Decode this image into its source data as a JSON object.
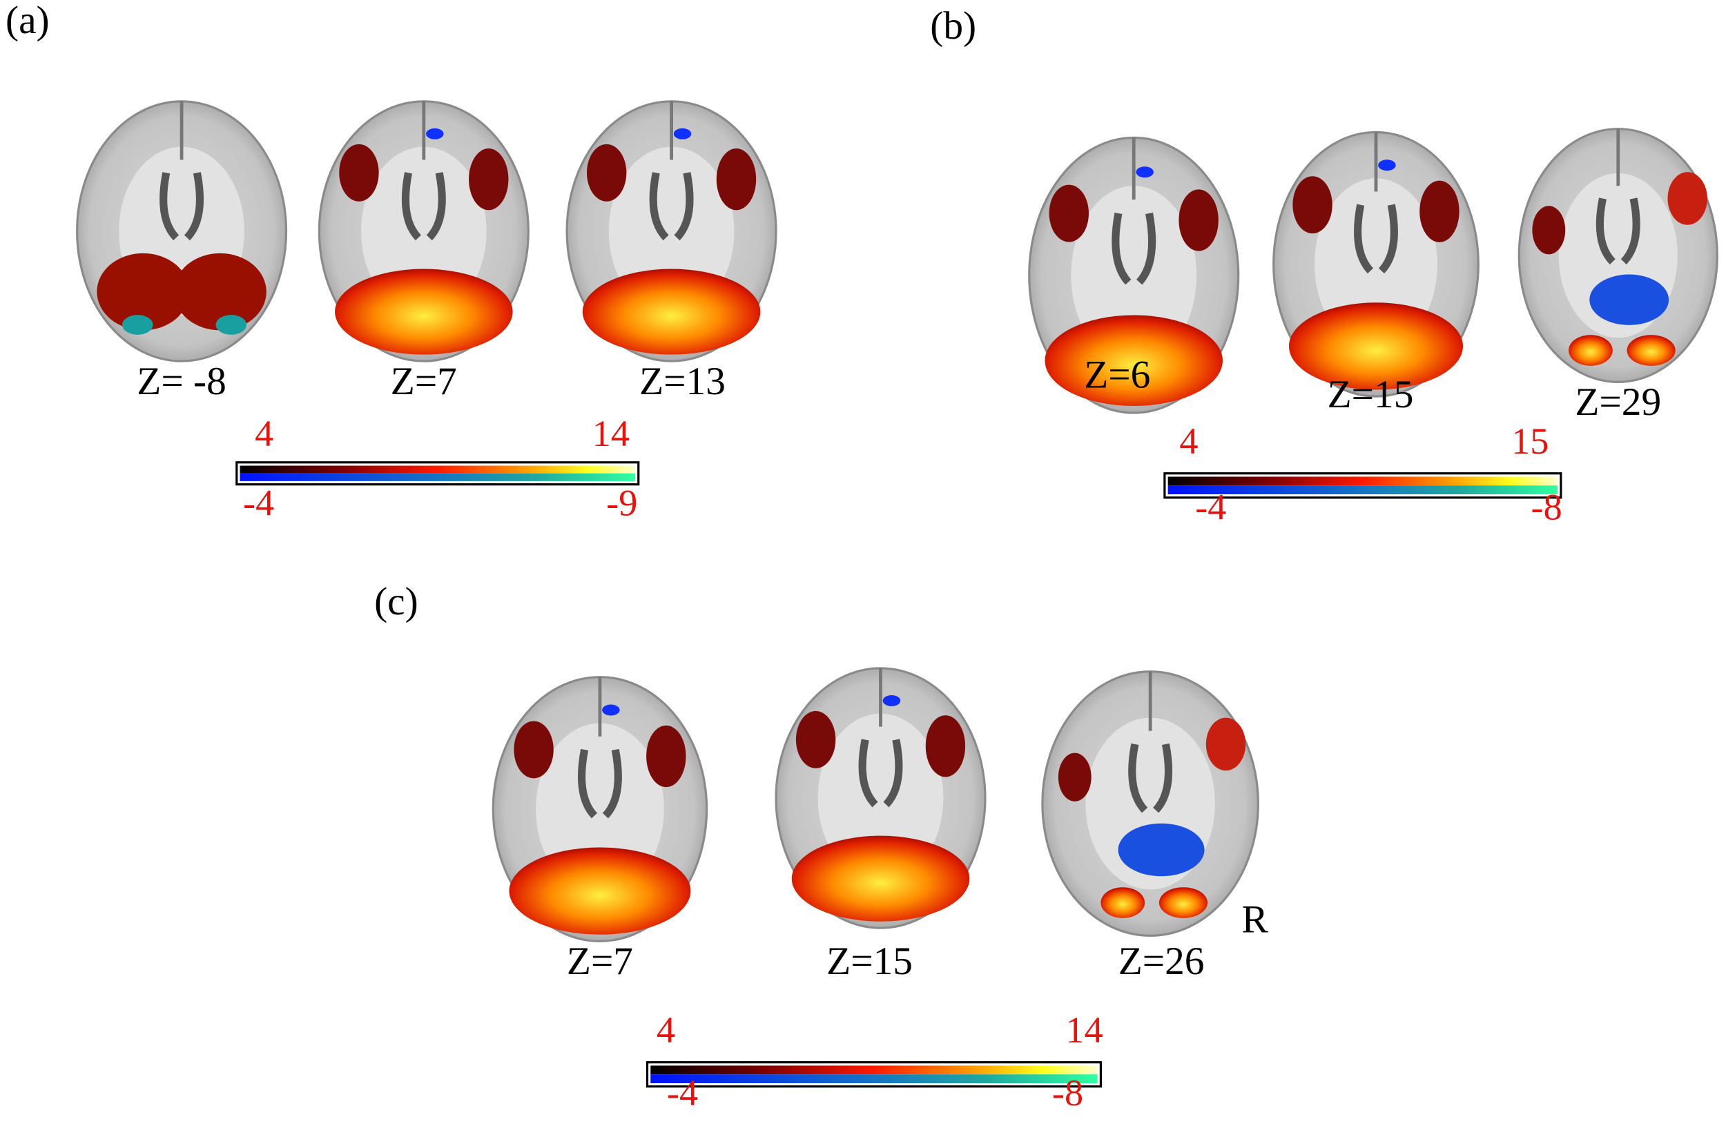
{
  "panels": [
    {
      "label": "(a)",
      "slices": [
        "Z= -8",
        "Z=7",
        "Z=13"
      ],
      "colorbar": {
        "positive_min": 4,
        "positive_max": 14,
        "negative_min": -4,
        "negative_max": -9
      }
    },
    {
      "label": "(b)",
      "slices": [
        "Z=6",
        "Z=15",
        "Z=29"
      ],
      "colorbar": {
        "positive_min": 4,
        "positive_max": 15,
        "negative_min": -4,
        "negative_max": -8
      }
    },
    {
      "label": "(c)",
      "slices": [
        "Z=7",
        "Z=15",
        "Z=26"
      ],
      "colorbar": {
        "positive_min": 4,
        "positive_max": 14,
        "negative_min": -4,
        "negative_max": -8
      }
    }
  ],
  "orientation_label": "R"
}
